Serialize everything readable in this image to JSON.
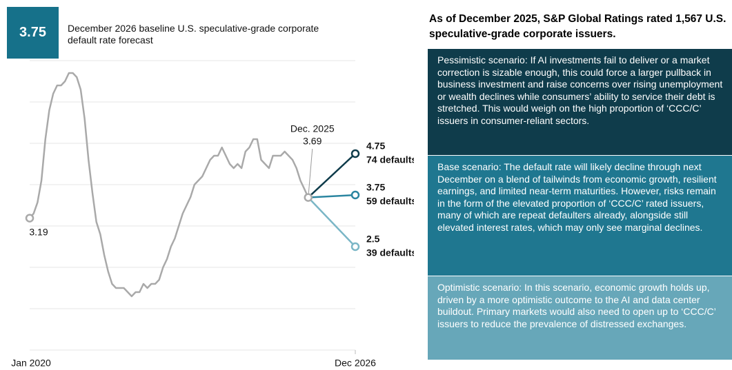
{
  "header": {
    "value": 3.75,
    "text": "December 2026 baseline U.S. speculative-grade corporate default rate forecast"
  },
  "chart_data": {
    "type": "line",
    "categories": [
      "Jan 2020",
      null,
      null,
      null,
      null,
      null,
      null,
      null,
      null,
      null,
      null,
      null,
      null,
      null,
      null,
      null,
      null,
      null,
      null,
      null,
      null,
      null,
      null,
      null,
      null,
      null,
      null,
      null,
      null,
      null,
      null,
      null,
      null,
      null,
      null,
      null,
      null,
      null,
      null,
      null,
      null,
      null,
      null,
      null,
      null,
      null,
      null,
      null,
      null,
      null,
      null,
      null,
      null,
      null,
      null,
      null,
      null,
      null,
      null,
      null,
      null,
      null,
      null,
      null,
      null,
      null,
      null,
      null,
      null,
      null,
      null,
      null,
      null,
      null,
      null,
      null,
      null,
      null,
      null,
      null,
      null,
      null,
      null,
      "Dec 2026"
    ],
    "ylim": [
      0,
      7
    ],
    "yticks": [
      0,
      1,
      2,
      3,
      4,
      5,
      6,
      7
    ],
    "grid": true,
    "annotation": "Dec. 2025",
    "series": [
      {
        "color": "#a9a9a9",
        "values": [
          3.19,
          3.3,
          3.57,
          4.1,
          5.1,
          5.8,
          6.2,
          6.4,
          6.4,
          6.5,
          6.7,
          6.7,
          6.6,
          6.3,
          5.6,
          4.6,
          3.8,
          3.1,
          2.8,
          2.3,
          1.9,
          1.6,
          1.5,
          1.5,
          1.5,
          1.4,
          1.3,
          1.4,
          1.4,
          1.6,
          1.5,
          1.6,
          1.6,
          1.7,
          2.0,
          2.2,
          2.5,
          2.7,
          3.0,
          3.3,
          3.5,
          3.7,
          4.0,
          4.1,
          4.2,
          4.4,
          4.6,
          4.7,
          4.7,
          4.9,
          4.7,
          4.5,
          4.4,
          4.5,
          4.4,
          4.8,
          4.9,
          5.1,
          5.1,
          4.6,
          4.5,
          4.4,
          4.7,
          4.7,
          4.7,
          4.8,
          4.7,
          4.6,
          4.4,
          4.1,
          3.9,
          3.69,
          null,
          null,
          null,
          null,
          null,
          null,
          null,
          null,
          null,
          null,
          null,
          null
        ]
      },
      {
        "color": "#0e3b4a",
        "note": "74 defaults",
        "values": [
          null,
          null,
          null,
          null,
          null,
          null,
          null,
          null,
          null,
          null,
          null,
          null,
          null,
          null,
          null,
          null,
          null,
          null,
          null,
          null,
          null,
          null,
          null,
          null,
          null,
          null,
          null,
          null,
          null,
          null,
          null,
          null,
          null,
          null,
          null,
          null,
          null,
          null,
          null,
          null,
          null,
          null,
          null,
          null,
          null,
          null,
          null,
          null,
          null,
          null,
          null,
          null,
          null,
          null,
          null,
          null,
          null,
          null,
          null,
          null,
          null,
          null,
          null,
          null,
          null,
          null,
          null,
          null,
          null,
          null,
          null,
          null,
          null,
          null,
          null,
          null,
          null,
          null,
          null,
          null,
          null,
          null,
          null,
          4.75
        ]
      },
      {
        "color": "#2a85a0",
        "note": "59 defaults",
        "values": [
          null,
          null,
          null,
          null,
          null,
          null,
          null,
          null,
          null,
          null,
          null,
          null,
          null,
          null,
          null,
          null,
          null,
          null,
          null,
          null,
          null,
          null,
          null,
          null,
          null,
          null,
          null,
          null,
          null,
          null,
          null,
          null,
          null,
          null,
          null,
          null,
          null,
          null,
          null,
          null,
          null,
          null,
          null,
          null,
          null,
          null,
          null,
          null,
          null,
          null,
          null,
          null,
          null,
          null,
          null,
          null,
          null,
          null,
          null,
          null,
          null,
          null,
          null,
          null,
          null,
          null,
          null,
          null,
          null,
          null,
          null,
          null,
          null,
          null,
          null,
          null,
          null,
          null,
          null,
          null,
          null,
          null,
          null,
          3.75
        ]
      },
      {
        "color": "#7ab6c6",
        "note": "39 defaults",
        "values": [
          null,
          null,
          null,
          null,
          null,
          null,
          null,
          null,
          null,
          null,
          null,
          null,
          null,
          null,
          null,
          null,
          null,
          null,
          null,
          null,
          null,
          null,
          null,
          null,
          null,
          null,
          null,
          null,
          null,
          null,
          null,
          null,
          null,
          null,
          null,
          null,
          null,
          null,
          null,
          null,
          null,
          null,
          null,
          null,
          null,
          null,
          null,
          null,
          null,
          null,
          null,
          null,
          null,
          null,
          null,
          null,
          null,
          null,
          null,
          null,
          null,
          null,
          null,
          null,
          null,
          null,
          null,
          null,
          null,
          null,
          null,
          null,
          null,
          null,
          null,
          null,
          null,
          null,
          null,
          null,
          null,
          null,
          null,
          2.5
        ]
      }
    ]
  },
  "panel": {
    "title": "As of December 2025, S&P Global Ratings rated 1,567 U.S. speculative-grade corporate issuers.",
    "scenarios": [
      {
        "color": "#0f3c4b",
        "text": "Pessimistic scenario: If AI investments fail to deliver or a market correction is sizable enough, this could force a larger pullback in business investment and raise concerns over rising unemployment or wealth declines while consumers’ ability to service their debt is stretched. This would weigh on the high proportion of ‘CCC/C’ issuers in consumer-reliant sectors."
      },
      {
        "color": "#1f7790",
        "text": "Base scenario: The default rate will likely decline through next December on a blend of tailwinds from economic growth, resilient earnings, and limited near-term maturities. However, risks remain in the form of the elevated proportion of ‘CCC/C’ rated issuers, many of which are repeat defaulters already, alongside still elevated interest rates, which may only see marginal declines."
      },
      {
        "color": "#67a7b9",
        "text": "Optimistic scenario: In this scenario, economic growth holds up, driven by a more optimistic outcome to the AI and data center buildout. Primary markets would also need to open up to ‘CCC/C’ issuers to reduce the prevalence of distressed exchanges."
      }
    ]
  }
}
